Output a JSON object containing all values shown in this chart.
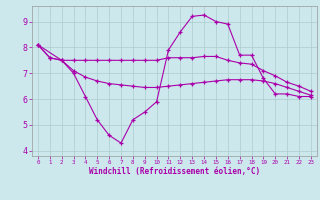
{
  "background_color": "#cce8ec",
  "grid_color": "#aacccc",
  "line_color": "#aa00aa",
  "xlabel": "Windchill (Refroidissement éolien,°C)",
  "xlim": [
    -0.5,
    23.5
  ],
  "ylim": [
    3.8,
    9.6
  ],
  "yticks": [
    4,
    5,
    6,
    7,
    8,
    9
  ],
  "xticks": [
    0,
    1,
    2,
    3,
    4,
    5,
    6,
    7,
    8,
    9,
    10,
    11,
    12,
    13,
    14,
    15,
    16,
    17,
    18,
    19,
    20,
    21,
    22,
    23
  ],
  "line1_x": [
    0,
    1,
    2,
    3,
    4,
    5,
    6,
    7,
    8,
    9,
    10,
    11,
    12,
    13,
    14,
    15,
    16,
    17,
    18,
    19,
    20,
    21,
    22,
    23
  ],
  "line1_y": [
    8.1,
    7.6,
    7.5,
    7.0,
    6.1,
    5.2,
    4.6,
    4.3,
    5.2,
    5.5,
    5.9,
    7.9,
    8.6,
    9.2,
    9.25,
    9.0,
    8.9,
    7.7,
    7.7,
    6.8,
    6.2,
    6.2,
    6.1,
    6.1
  ],
  "line2_x": [
    0,
    1,
    2,
    3,
    4,
    5,
    6,
    7,
    8,
    9,
    10,
    11,
    12,
    13,
    14,
    15,
    16,
    17,
    18,
    19,
    20,
    21,
    22,
    23
  ],
  "line2_y": [
    8.1,
    7.6,
    7.5,
    7.5,
    7.5,
    7.5,
    7.5,
    7.5,
    7.5,
    7.5,
    7.5,
    7.6,
    7.6,
    7.6,
    7.65,
    7.65,
    7.5,
    7.4,
    7.35,
    7.1,
    6.9,
    6.65,
    6.5,
    6.3
  ],
  "line3_x": [
    0,
    2,
    3,
    4,
    5,
    6,
    7,
    8,
    9,
    10,
    11,
    12,
    13,
    14,
    15,
    16,
    17,
    18,
    19,
    20,
    21,
    22,
    23
  ],
  "line3_y": [
    8.1,
    7.5,
    7.1,
    6.85,
    6.7,
    6.6,
    6.55,
    6.5,
    6.45,
    6.45,
    6.5,
    6.55,
    6.6,
    6.65,
    6.7,
    6.75,
    6.75,
    6.75,
    6.7,
    6.6,
    6.45,
    6.3,
    6.15
  ]
}
